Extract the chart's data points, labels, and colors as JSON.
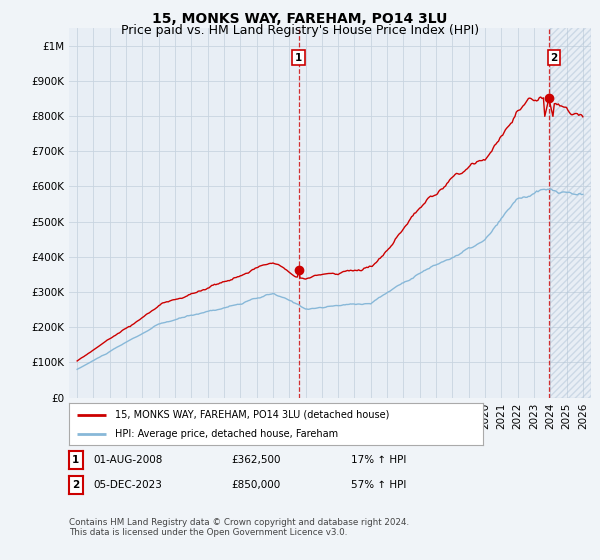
{
  "title": "15, MONKS WAY, FAREHAM, PO14 3LU",
  "subtitle": "Price paid vs. HM Land Registry's House Price Index (HPI)",
  "ylim": [
    0,
    1050000
  ],
  "yticks": [
    0,
    100000,
    200000,
    300000,
    400000,
    500000,
    600000,
    700000,
    800000,
    900000,
    1000000
  ],
  "ytick_labels": [
    "£0",
    "£100K",
    "£200K",
    "£300K",
    "£400K",
    "£500K",
    "£600K",
    "£700K",
    "£800K",
    "£900K",
    "£1M"
  ],
  "background_color": "#f0f4f8",
  "plot_bg_color": "#e8eef5",
  "grid_color": "#c8d4e0",
  "red_line_color": "#cc0000",
  "blue_line_color": "#88b8d8",
  "vline_color": "#cc0000",
  "sale1_year": 2008.58,
  "sale1_price": 362500,
  "sale2_year": 2023.92,
  "sale2_price": 850000,
  "legend_line1": "15, MONKS WAY, FAREHAM, PO14 3LU (detached house)",
  "legend_line2": "HPI: Average price, detached house, Fareham",
  "table_row1_num": "1",
  "table_row1_date": "01-AUG-2008",
  "table_row1_price": "£362,500",
  "table_row1_hpi": "17% ↑ HPI",
  "table_row2_num": "2",
  "table_row2_date": "05-DEC-2023",
  "table_row2_price": "£850,000",
  "table_row2_hpi": "57% ↑ HPI",
  "footer": "Contains HM Land Registry data © Crown copyright and database right 2024.\nThis data is licensed under the Open Government Licence v3.0.",
  "title_fontsize": 10,
  "subtitle_fontsize": 9,
  "tick_fontsize": 7.5
}
